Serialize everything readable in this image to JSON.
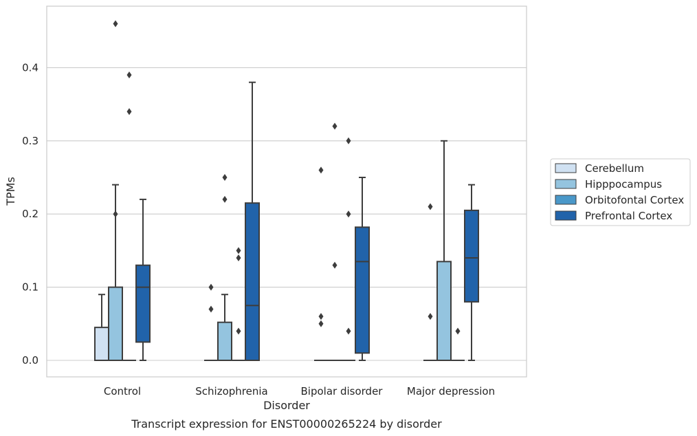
{
  "caption": "Transcript expression for ENST00000265224 by disorder",
  "chart_data": {
    "type": "box",
    "xlabel": "Disorder",
    "ylabel": "TPMs",
    "ylim": [
      -0.022,
      0.485
    ],
    "yticks": [
      "0.0",
      "0.1",
      "0.2",
      "0.3",
      "0.4"
    ],
    "ytick_values": [
      0.0,
      0.1,
      0.2,
      0.3,
      0.4
    ],
    "grid": true,
    "legend_position": "right",
    "categories": [
      "Control",
      "Schizophrenia",
      "Bipolar disorder",
      "Major depression"
    ],
    "series": [
      {
        "name": "Cerebellum",
        "color": "#d0e1f2",
        "boxes": [
          {
            "q1": 0.0,
            "median": 0.0,
            "q3": 0.045,
            "whislo": 0.0,
            "whishi": 0.09,
            "fliers": []
          },
          {
            "q1": 0.0,
            "median": 0.0,
            "q3": 0.0,
            "whislo": 0.0,
            "whishi": 0.0,
            "fliers": [
              0.1,
              0.07
            ]
          },
          {
            "q1": 0.0,
            "median": 0.0,
            "q3": 0.0,
            "whislo": 0.0,
            "whishi": 0.0,
            "fliers": [
              0.26,
              0.06,
              0.05
            ]
          },
          {
            "q1": 0.0,
            "median": 0.0,
            "q3": 0.0,
            "whislo": 0.0,
            "whishi": 0.0,
            "fliers": [
              0.21,
              0.06
            ]
          }
        ]
      },
      {
        "name": "Hipppocampus",
        "color": "#94c4df",
        "boxes": [
          {
            "q1": 0.0,
            "median": 0.0,
            "q3": 0.1,
            "whislo": 0.0,
            "whishi": 0.24,
            "fliers": [
              0.46,
              0.2
            ]
          },
          {
            "q1": 0.0,
            "median": 0.0,
            "q3": 0.052,
            "whislo": 0.0,
            "whishi": 0.09,
            "fliers": [
              0.25,
              0.22
            ]
          },
          {
            "q1": 0.0,
            "median": 0.0,
            "q3": 0.0,
            "whislo": 0.0,
            "whishi": 0.0,
            "fliers": [
              0.32,
              0.13
            ]
          },
          {
            "q1": 0.0,
            "median": 0.0,
            "q3": 0.135,
            "whislo": 0.0,
            "whishi": 0.3,
            "fliers": []
          }
        ]
      },
      {
        "name": "Orbitofontal Cortex",
        "color": "#4a98c9",
        "boxes": [
          {
            "q1": 0.0,
            "median": 0.0,
            "q3": 0.0,
            "whislo": 0.0,
            "whishi": 0.0,
            "fliers": [
              0.39,
              0.34
            ]
          },
          {
            "q1": 0.0,
            "median": 0.0,
            "q3": 0.0,
            "whislo": 0.0,
            "whishi": 0.0,
            "fliers": [
              0.15,
              0.14,
              0.04
            ]
          },
          {
            "q1": 0.0,
            "median": 0.0,
            "q3": 0.0,
            "whislo": 0.0,
            "whishi": 0.0,
            "fliers": [
              0.3,
              0.2,
              0.04
            ]
          },
          {
            "q1": 0.0,
            "median": 0.0,
            "q3": 0.0,
            "whislo": 0.0,
            "whishi": 0.0,
            "fliers": [
              0.04
            ]
          }
        ]
      },
      {
        "name": "Prefrontal Cortex",
        "color": "#2163aa",
        "boxes": [
          {
            "q1": 0.025,
            "median": 0.1,
            "q3": 0.13,
            "whislo": 0.0,
            "whishi": 0.22,
            "fliers": []
          },
          {
            "q1": 0.0,
            "median": 0.075,
            "q3": 0.215,
            "whislo": 0.0,
            "whishi": 0.38,
            "fliers": []
          },
          {
            "q1": 0.01,
            "median": 0.135,
            "q3": 0.182,
            "whislo": 0.0,
            "whishi": 0.25,
            "fliers": []
          },
          {
            "q1": 0.08,
            "median": 0.14,
            "q3": 0.205,
            "whislo": 0.0,
            "whishi": 0.24,
            "fliers": []
          }
        ]
      }
    ]
  }
}
